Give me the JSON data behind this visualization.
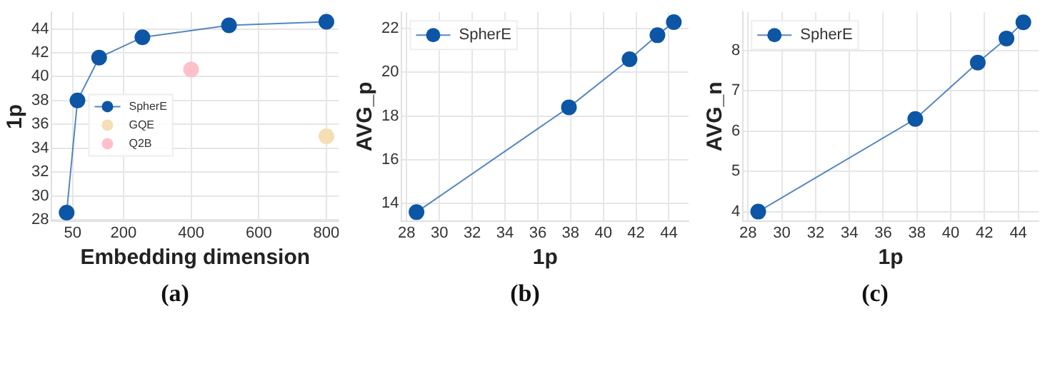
{
  "chart_data": [
    {
      "type": "line",
      "xlabel": "Embedding dimension",
      "ylabel": "1p",
      "xlim": [
        -12,
        836
      ],
      "xticks": [
        50,
        200,
        400,
        600,
        800
      ],
      "ylim": [
        27.9,
        45.4
      ],
      "yticks": [
        28,
        30,
        32,
        34,
        36,
        38,
        40,
        42,
        44
      ],
      "grid": true,
      "legend": "left",
      "marker": "circle",
      "line_style": "solid",
      "annotations": [
        "(a)"
      ],
      "series": [
        {
          "name": "SpherE",
          "color": "#0d56a6",
          "x": [
            32,
            64,
            128,
            256,
            512,
            800
          ],
          "values": [
            28.6,
            38.0,
            41.6,
            43.3,
            44.3,
            44.6
          ]
        },
        {
          "name": "GQE",
          "type": "scatter",
          "color": "#f5deb3",
          "x": [
            800
          ],
          "values": [
            35.0
          ]
        },
        {
          "name": "Q2B",
          "type": "scatter",
          "color": "#ffc0cb",
          "x": [
            400
          ],
          "values": [
            40.6
          ]
        }
      ]
    },
    {
      "type": "line",
      "xlabel": "1p",
      "ylabel": "AVG_p",
      "xlim": [
        27.7,
        45.2
      ],
      "xticks": [
        28,
        30,
        32,
        34,
        36,
        38,
        40,
        42,
        44
      ],
      "ylim": [
        13.2,
        22.75
      ],
      "yticks": [
        14,
        16,
        18,
        20,
        22
      ],
      "grid": true,
      "legend": "top left",
      "marker": "circle",
      "line_style": "solid",
      "annotations": [
        "(b)"
      ],
      "series": [
        {
          "name": "SpherE",
          "color": "#0d56a6",
          "x": [
            28.6,
            37.9,
            41.6,
            43.3,
            44.3
          ],
          "values": [
            13.6,
            18.4,
            20.6,
            21.7,
            22.3
          ]
        }
      ]
    },
    {
      "type": "line",
      "xlabel": "1p",
      "ylabel": "AVG_n",
      "xlim": [
        27.7,
        45.2
      ],
      "xticks": [
        28,
        30,
        32,
        34,
        36,
        38,
        40,
        42,
        44
      ],
      "ylim": [
        3.77,
        8.95
      ],
      "yticks": [
        4,
        5,
        6,
        7,
        8
      ],
      "grid": true,
      "legend": "top left",
      "marker": "circle",
      "line_style": "solid",
      "annotations": [
        "(c)"
      ],
      "series": [
        {
          "name": "SpherE",
          "color": "#0d56a6",
          "x": [
            28.6,
            37.9,
            41.6,
            43.3,
            44.3
          ],
          "values": [
            4.0,
            6.3,
            7.7,
            8.3,
            8.7
          ]
        }
      ]
    }
  ]
}
